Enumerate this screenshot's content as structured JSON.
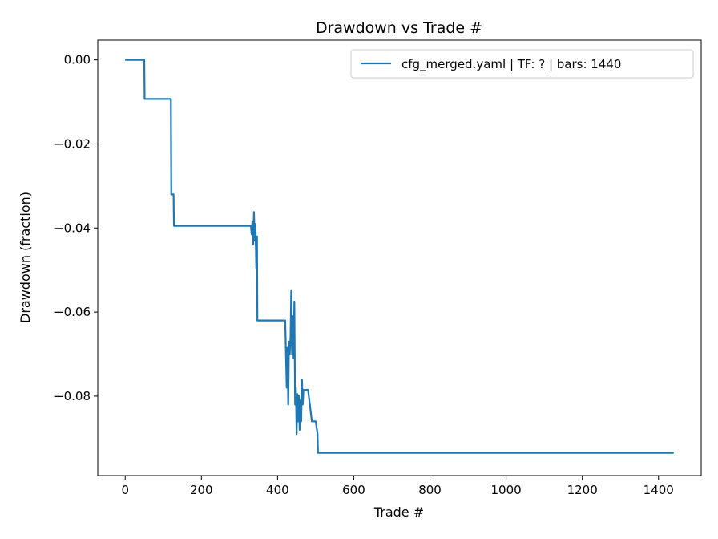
{
  "chart_data": {
    "type": "line",
    "title": "Drawdown vs Trade #",
    "xlabel": "Trade #",
    "ylabel": "Drawdown (fraction)",
    "xlim": [
      -72,
      1512
    ],
    "ylim": [
      -0.0989,
      0.0047
    ],
    "xticks": [
      0,
      200,
      400,
      600,
      800,
      1000,
      1200,
      1400
    ],
    "xtick_labels": [
      "0",
      "200",
      "400",
      "600",
      "800",
      "1000",
      "1200",
      "1400"
    ],
    "yticks": [
      0.0,
      -0.02,
      -0.04,
      -0.06,
      -0.08
    ],
    "ytick_labels": [
      "0.00",
      "−0.02",
      "−0.04",
      "−0.06",
      "−0.08"
    ],
    "grid": false,
    "legend_position": "upper right",
    "series": [
      {
        "name": "cfg_merged.yaml | TF: ? | bars: 1440",
        "color": "#1f77b4",
        "x": [
          0,
          50,
          51,
          120,
          121,
          127,
          128,
          330,
          332,
          334,
          336,
          338,
          340,
          342,
          344,
          346,
          347,
          350,
          420,
          424,
          426,
          428,
          430,
          432,
          434,
          436,
          438,
          440,
          442,
          444,
          446,
          448,
          450,
          452,
          454,
          456,
          458,
          460,
          462,
          464,
          466,
          468,
          470,
          472,
          480,
          490,
          495,
          500,
          505,
          506,
          508,
          1440
        ],
        "y": [
          0.0,
          0.0,
          -0.0093,
          -0.0093,
          -0.032,
          -0.032,
          -0.0395,
          -0.0395,
          -0.0415,
          -0.0385,
          -0.044,
          -0.0362,
          -0.043,
          -0.039,
          -0.0495,
          -0.042,
          -0.062,
          -0.062,
          -0.062,
          -0.078,
          -0.0685,
          -0.082,
          -0.067,
          -0.07,
          -0.066,
          -0.0548,
          -0.07,
          -0.061,
          -0.071,
          -0.0575,
          -0.082,
          -0.078,
          -0.089,
          -0.0795,
          -0.086,
          -0.08,
          -0.088,
          -0.081,
          -0.086,
          -0.076,
          -0.082,
          -0.0785,
          -0.0785,
          -0.0785,
          -0.0785,
          -0.086,
          -0.086,
          -0.086,
          -0.089,
          -0.0935,
          -0.0935,
          -0.0935
        ]
      }
    ]
  }
}
